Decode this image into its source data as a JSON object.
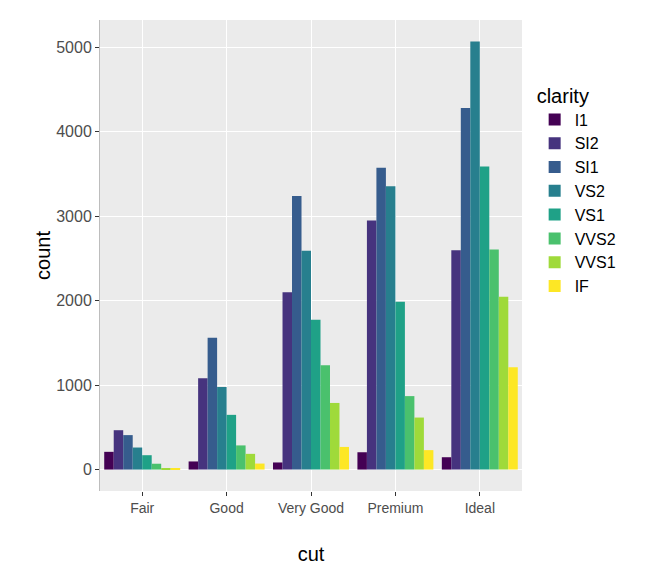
{
  "chart_data": {
    "type": "bar",
    "x_label": "cut",
    "y_label": "count",
    "legend_title": "clarity",
    "categories": [
      "Fair",
      "Good",
      "Very Good",
      "Premium",
      "Ideal"
    ],
    "series": [
      {
        "name": "I1",
        "color": "#440154",
        "values": [
          210,
          96,
          84,
          205,
          146
        ]
      },
      {
        "name": "SI2",
        "color": "#46337E",
        "values": [
          466,
          1081,
          2100,
          2949,
          2598
        ]
      },
      {
        "name": "SI1",
        "color": "#365C8D",
        "values": [
          408,
          1560,
          3240,
          3575,
          4282
        ]
      },
      {
        "name": "VS2",
        "color": "#277F8E",
        "values": [
          261,
          978,
          2591,
          3357,
          5071
        ]
      },
      {
        "name": "VS1",
        "color": "#1FA187",
        "values": [
          170,
          648,
          1775,
          1989,
          3589
        ]
      },
      {
        "name": "VVS2",
        "color": "#4AC16D",
        "values": [
          69,
          286,
          1235,
          870,
          2606
        ]
      },
      {
        "name": "VVS1",
        "color": "#9FDA3A",
        "values": [
          17,
          186,
          789,
          616,
          2047
        ]
      },
      {
        "name": "IF",
        "color": "#FDE725",
        "values": [
          9,
          71,
          268,
          230,
          1212
        ]
      }
    ],
    "ylim": [
      -254,
      5325
    ],
    "yticks": [
      0,
      1000,
      2000,
      3000,
      4000,
      5000
    ],
    "grid": true,
    "legend": "right",
    "stacked": false
  }
}
